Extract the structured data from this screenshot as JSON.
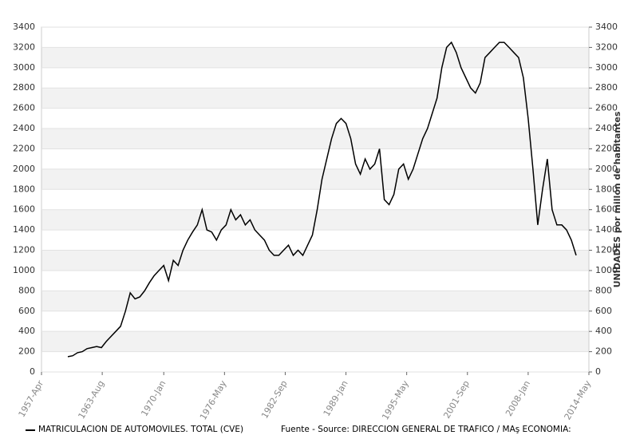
{
  "chart_data": {
    "type": "line",
    "x": [
      "1960-Jan",
      "1960-Jul",
      "1961-Jan",
      "1961-Jul",
      "1962-Jan",
      "1962-Jul",
      "1963-Jan",
      "1963-Jul",
      "1964-Jan",
      "1964-Jul",
      "1965-Jan",
      "1965-Jul",
      "1966-Jan",
      "1966-Jul",
      "1967-Jan",
      "1967-Jul",
      "1968-Jan",
      "1968-Jul",
      "1969-Jan",
      "1969-Jul",
      "1970-Jan",
      "1970-Jul",
      "1971-Jan",
      "1971-Jul",
      "1972-Jan",
      "1972-Jul",
      "1973-Jan",
      "1973-Jul",
      "1974-Jan",
      "1974-Jul",
      "1975-Jan",
      "1975-Jul",
      "1976-Jan",
      "1976-Jul",
      "1977-Jan",
      "1977-Jul",
      "1978-Jan",
      "1978-Jul",
      "1979-Jan",
      "1979-Jul",
      "1980-Jan",
      "1980-Jul",
      "1981-Jan",
      "1981-Jul",
      "1982-Jan",
      "1982-Jul",
      "1983-Jan",
      "1983-Jul",
      "1984-Jan",
      "1984-Jul",
      "1985-Jan",
      "1985-Jul",
      "1986-Jan",
      "1986-Jul",
      "1987-Jan",
      "1987-Jul",
      "1988-Jan",
      "1988-Jul",
      "1989-Jan",
      "1989-Jul",
      "1990-Jan",
      "1990-Jul",
      "1991-Jan",
      "1991-Jul",
      "1992-Jan",
      "1992-Jul",
      "1993-Jan",
      "1993-Jul",
      "1994-Jan",
      "1994-Jul",
      "1995-Jan",
      "1995-Jul",
      "1996-Jan",
      "1996-Jul",
      "1997-Jan",
      "1997-Jul",
      "1998-Jan",
      "1998-Jul",
      "1999-Jan",
      "1999-Jul",
      "2000-Jan",
      "2000-Jul",
      "2001-Jan",
      "2001-Jul",
      "2002-Jan",
      "2002-Jul",
      "2003-Jan",
      "2003-Jul",
      "2004-Jan",
      "2004-Jul",
      "2005-Jan",
      "2005-Jul",
      "2006-Jan",
      "2006-Jul",
      "2007-Jan",
      "2007-Jul",
      "2008-Jan",
      "2008-Jul",
      "2009-Jan",
      "2009-Jul",
      "2010-Jan",
      "2010-Jul",
      "2011-Jan",
      "2011-Jul",
      "2012-Jan",
      "2012-Jul",
      "2013-Jan"
    ],
    "series": [
      {
        "name": "MATRICULACION DE AUTOMOVILES. TOTAL (CVE)",
        "color": "#000000",
        "values": [
          150,
          160,
          190,
          200,
          230,
          240,
          250,
          240,
          300,
          350,
          400,
          450,
          600,
          780,
          720,
          740,
          800,
          880,
          950,
          1000,
          1050,
          900,
          1100,
          1050,
          1200,
          1300,
          1380,
          1450,
          1600,
          1400,
          1380,
          1300,
          1400,
          1450,
          1600,
          1500,
          1550,
          1450,
          1500,
          1400,
          1350,
          1300,
          1200,
          1150,
          1150,
          1200,
          1250,
          1150,
          1200,
          1150,
          1250,
          1350,
          1600,
          1900,
          2100,
          2300,
          2450,
          2500,
          2450,
          2300,
          2050,
          1950,
          2100,
          2000,
          2050,
          2200,
          1700,
          1650,
          1750,
          2000,
          2050,
          1900,
          2000,
          2150,
          2300,
          2400,
          2550,
          2700,
          3000,
          3200,
          3250,
          3150,
          3000,
          2900,
          2800,
          2750,
          2850,
          3100,
          3150,
          3200,
          3250,
          3250,
          3200,
          3150,
          3100,
          2900,
          2500,
          2000,
          1450,
          1800,
          2100,
          1600,
          1450,
          1450,
          1400,
          1300,
          1150
        ]
      }
    ],
    "source": "Fuente - Source: DIRECCION GENERAL DE TRAFICO / MAş ECONOMIA: ",
    "y2label": "UNIDADES por millón de habitantes",
    "xlim": [
      "1957-Apr",
      "2014-May"
    ],
    "xticks": [
      "1957-Apr",
      "1963-Aug",
      "1970-Jan",
      "1976-May",
      "1982-Sep",
      "1989-Jan",
      "1995-May",
      "2001-Sep",
      "2008-Jan",
      "2014-May"
    ],
    "ylim": [
      0,
      3400
    ],
    "yticks": [
      0,
      200,
      400,
      600,
      800,
      1000,
      1200,
      1400,
      1600,
      1800,
      2000,
      2200,
      2400,
      2600,
      2800,
      3000,
      3200,
      3400
    ],
    "y2lim": [
      0,
      3400
    ],
    "y2ticks": [
      0,
      200,
      400,
      600,
      800,
      1000,
      1200,
      1400,
      1600,
      1800,
      2000,
      2200,
      2400,
      2600,
      2800,
      3000,
      3200,
      3400
    ],
    "grid": true
  }
}
